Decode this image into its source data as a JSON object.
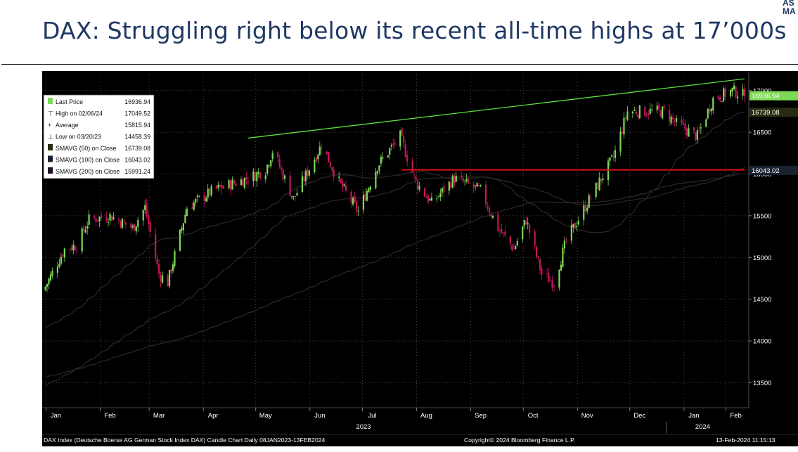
{
  "header": {
    "title": "DAX: Struggling right below its recent all-time highs at 17’000s",
    "brand_line1": "AS",
    "brand_line2": "MA"
  },
  "footer": {
    "left": "DAX Index (Deutsche Boerse AG German Stock Index DAX) Candle Chart  Daily 08JAN2023-13FEB2024",
    "center": "Copyright© 2024 Bloomberg Finance L.P.",
    "right": "13-Feb-2024 11:15:13"
  },
  "colors": {
    "background": "#000000",
    "up_candle": "#7ed957",
    "down_candle": "#c2185b",
    "sma50": "#2a2a12",
    "sma100": "#1a2230",
    "sma200": "#1e1420",
    "trendline": "#5ee03e",
    "support": "#e01010"
  },
  "chart_data": {
    "type": "candlestick",
    "ylim": [
      13200,
      17200
    ],
    "y_ticks": [
      13500,
      14000,
      14500,
      15000,
      15500,
      16000,
      16500,
      17000
    ],
    "x_range": [
      "2023-01-08",
      "2024-02-13"
    ],
    "x_ticks": [
      {
        "date": "2023-01-15",
        "label": "Jan"
      },
      {
        "date": "2023-02-15",
        "label": "Feb"
      },
      {
        "date": "2023-03-15",
        "label": "Mar"
      },
      {
        "date": "2023-04-15",
        "label": "Apr"
      },
      {
        "date": "2023-05-15",
        "label": "May"
      },
      {
        "date": "2023-06-15",
        "label": "Jun"
      },
      {
        "date": "2023-07-15",
        "label": "Jul"
      },
      {
        "date": "2023-08-15",
        "label": "Aug"
      },
      {
        "date": "2023-09-15",
        "label": "Sep"
      },
      {
        "date": "2023-10-15",
        "label": "Oct"
      },
      {
        "date": "2023-11-15",
        "label": "Nov"
      },
      {
        "date": "2023-12-15",
        "label": "Dec"
      },
      {
        "date": "2024-01-15",
        "label": "Jan"
      },
      {
        "date": "2024-02-08",
        "label": "Feb"
      }
    ],
    "year_labels": [
      {
        "date": "2023-07-10",
        "label": "2023"
      },
      {
        "date": "2024-01-20",
        "label": "2024"
      }
    ],
    "legend": [
      {
        "label": "Last Price",
        "value": "16936.94",
        "swatch": "#7ed957"
      },
      {
        "label": "High on 02/06/24",
        "value": "17049.52",
        "swatch": "none"
      },
      {
        "label": "Average",
        "value": "15815.94",
        "swatch": "none"
      },
      {
        "label": "Low on 03/20/23",
        "value": "14458.39",
        "swatch": "none"
      },
      {
        "label": "SMAVG (50)  on Close",
        "value": "16739.08",
        "swatch": "#2a2a12"
      },
      {
        "label": "SMAVG (100)  on Close",
        "value": "16043.02",
        "swatch": "#1a2230"
      },
      {
        "label": "SMAVG (200)  on Close",
        "value": "15991.24",
        "swatch": "#1e1420"
      }
    ],
    "right_labels": [
      {
        "value": 16936.94,
        "text": "16936.94",
        "color": "#7ed957"
      },
      {
        "value": 16739.08,
        "text": "16739.08",
        "color": "#2a2a12"
      },
      {
        "value": 16043.02,
        "text": "16043.02",
        "color": "#1a2230"
      }
    ],
    "anchors": [
      [
        "2023-01-09",
        14650
      ],
      [
        "2023-01-20",
        15100
      ],
      [
        "2023-01-27",
        15150
      ],
      [
        "2023-02-03",
        15450
      ],
      [
        "2023-02-15",
        15500
      ],
      [
        "2023-02-28",
        15350
      ],
      [
        "2023-03-07",
        15600
      ],
      [
        "2023-03-15",
        14800
      ],
      [
        "2023-03-20",
        14700
      ],
      [
        "2023-03-31",
        15600
      ],
      [
        "2023-04-15",
        15800
      ],
      [
        "2023-04-28",
        15900
      ],
      [
        "2023-05-05",
        15950
      ],
      [
        "2023-05-15",
        16050
      ],
      [
        "2023-05-19",
        16280
      ],
      [
        "2023-05-31",
        15700
      ],
      [
        "2023-06-16",
        16350
      ],
      [
        "2023-06-26",
        15900
      ],
      [
        "2023-07-07",
        15550
      ],
      [
        "2023-07-18",
        16100
      ],
      [
        "2023-07-31",
        16450
      ],
      [
        "2023-08-09",
        15900
      ],
      [
        "2023-08-18",
        15650
      ],
      [
        "2023-08-31",
        15950
      ],
      [
        "2023-09-15",
        15800
      ],
      [
        "2023-09-25",
        15350
      ],
      [
        "2023-10-04",
        15100
      ],
      [
        "2023-10-11",
        15450
      ],
      [
        "2023-10-20",
        14800
      ],
      [
        "2023-10-27",
        14700
      ],
      [
        "2023-11-03",
        15200
      ],
      [
        "2023-11-15",
        15650
      ],
      [
        "2023-11-30",
        16200
      ],
      [
        "2023-12-08",
        16750
      ],
      [
        "2023-12-15",
        16750
      ],
      [
        "2023-12-29",
        16750
      ],
      [
        "2024-01-05",
        16600
      ],
      [
        "2024-01-17",
        16450
      ],
      [
        "2024-01-26",
        16900
      ],
      [
        "2024-02-06",
        17000
      ],
      [
        "2024-02-13",
        16937
      ]
    ],
    "lines": [
      {
        "name": "trendline",
        "from": [
          "2023-05-05",
          16430
        ],
        "to": [
          "2024-02-13",
          17140
        ]
      },
      {
        "name": "support",
        "from": [
          "2023-08-01",
          16050
        ],
        "to": [
          "2024-02-13",
          16050
        ]
      }
    ]
  }
}
